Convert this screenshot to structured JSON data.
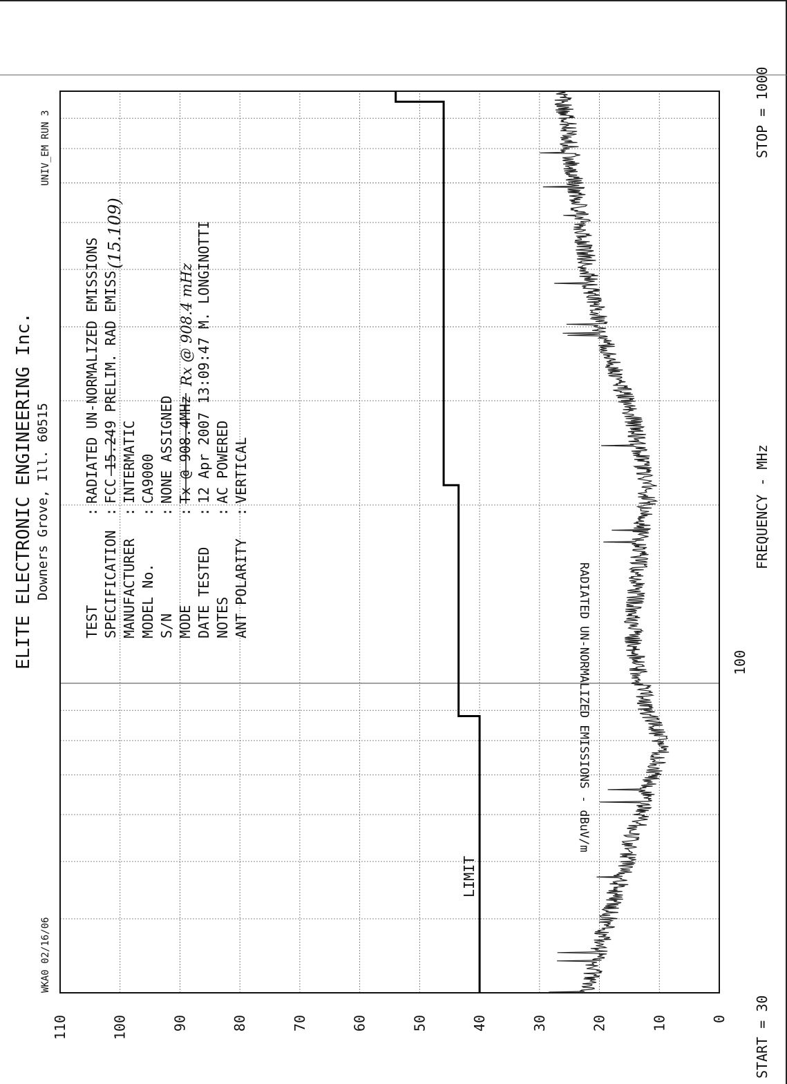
{
  "header": {
    "title": "ELITE ELECTRONIC ENGINEERING Inc.",
    "subtitle": "Downers Grove, Ill. 60515",
    "left_code": "WKA0 02/16/06",
    "right_code": "UNIV_EM   RUN 3"
  },
  "info": {
    "rows": [
      {
        "label": "TEST",
        "value": "RADIATED UN-NORMALIZED EMISSIONS"
      },
      {
        "label": "SPECIFICATION",
        "value": "FCC 15.249 PRELIM. RAD EMISS"
      },
      {
        "label": "MANUFACTURER",
        "value": "INTERMATIC"
      },
      {
        "label": "MODEL No.",
        "value": "CA9000"
      },
      {
        "label": "S/N",
        "value": "NONE ASSIGNED"
      },
      {
        "label": "MODE",
        "value": "Tx @ 908.4MHz"
      },
      {
        "label": "DATE TESTED",
        "value": "12 Apr 2007  13:09:47  M. LONGINOTTI"
      },
      {
        "label": "NOTES",
        "value": "AC POWERED"
      },
      {
        "label": "ANT POLARITY",
        "value": "VERTICAL"
      }
    ],
    "handwritten": {
      "spec_note": "(15.109)",
      "mode_note": "Rx @ 908.4 mHz"
    }
  },
  "limit_label": "LIMIT",
  "x_axis": {
    "start_label": "START = 30",
    "mid_label": "100",
    "stop_label": "STOP = 1000",
    "title": "FREQUENCY - MHz"
  },
  "y_axis": {
    "title": "RADIATED UN-NORMALIZED EMISSIONS - dBuV/m"
  },
  "chart_data": {
    "type": "line",
    "title": "ELITE ELECTRONIC ENGINEERING Inc.",
    "xlabel": "FREQUENCY - MHz",
    "ylabel": "RADIATED UN-NORMALIZED EMISSIONS - dBuV/m",
    "x_scale": "log",
    "xlim": [
      30,
      1000
    ],
    "ylim": [
      0,
      110
    ],
    "y_ticks": [
      0,
      10,
      20,
      30,
      40,
      50,
      60,
      70,
      80,
      90,
      100,
      110
    ],
    "grid": true,
    "series": [
      {
        "name": "LIMIT",
        "x": [
          30,
          88,
          88,
          216,
          216,
          960,
          960,
          1000
        ],
        "y": [
          40,
          40,
          43.5,
          43.5,
          46,
          46,
          54,
          54
        ]
      },
      {
        "name": "",
        "x": [
          30,
          33,
          36,
          40,
          45,
          50,
          55,
          60,
          65,
          70,
          75,
          80,
          85,
          90,
          100,
          110,
          120,
          140,
          160,
          180,
          200,
          220,
          240,
          270,
          300,
          330,
          360,
          400,
          450,
          500,
          550,
          600,
          650,
          700,
          750,
          800,
          850,
          900,
          950,
          1000
        ],
        "y": [
          22,
          21,
          20,
          18.5,
          17,
          15.5,
          14.5,
          13,
          12,
          11,
          10,
          10,
          11,
          12,
          13,
          14,
          14.5,
          14,
          13.5,
          13,
          12,
          12,
          13,
          14,
          15.5,
          17,
          18.5,
          20,
          21,
          22,
          22.5,
          23,
          23.5,
          24,
          24.5,
          25,
          25,
          25.5,
          26,
          26
        ]
      }
    ]
  }
}
